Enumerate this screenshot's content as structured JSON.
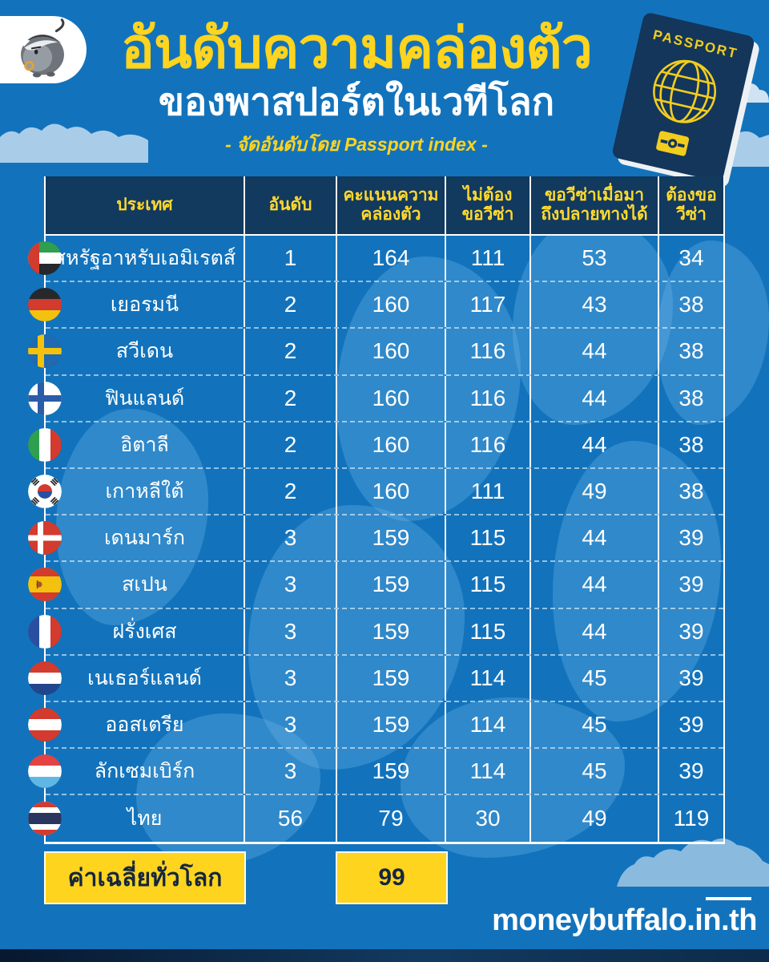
{
  "header": {
    "title": "อันดับความคล่องตัว",
    "subtitle": "ของพาสปอร์ตในเวทีโลก",
    "tagline": "- จัดอันดับโดย Passport index -"
  },
  "passport": {
    "label": "PASSPORT"
  },
  "table": {
    "columns": [
      "ประเทศ",
      "อันดับ",
      "คะแนนความ\nคล่องตัว",
      "ไม่ต้อง\nขอวีซ่า",
      "ขอวีซ่าเมื่อมา\nถึงปลายทางได้",
      "ต้องขอ\nวีซ่า"
    ],
    "rows": [
      {
        "flag": "uae",
        "country": "สหรัฐอาหรับเอมิเรตส์",
        "rank": "1",
        "score": "164",
        "visa_free": "111",
        "visa_on_arrival": "53",
        "visa_required": "34"
      },
      {
        "flag": "germany",
        "country": "เยอรมนี",
        "rank": "2",
        "score": "160",
        "visa_free": "117",
        "visa_on_arrival": "43",
        "visa_required": "38"
      },
      {
        "flag": "sweden",
        "country": "สวีเดน",
        "rank": "2",
        "score": "160",
        "visa_free": "116",
        "visa_on_arrival": "44",
        "visa_required": "38"
      },
      {
        "flag": "finland",
        "country": "ฟินแลนด์",
        "rank": "2",
        "score": "160",
        "visa_free": "116",
        "visa_on_arrival": "44",
        "visa_required": "38"
      },
      {
        "flag": "italy",
        "country": "อิตาลี",
        "rank": "2",
        "score": "160",
        "visa_free": "116",
        "visa_on_arrival": "44",
        "visa_required": "38"
      },
      {
        "flag": "south-korea",
        "country": "เกาหลีใต้",
        "rank": "2",
        "score": "160",
        "visa_free": "111",
        "visa_on_arrival": "49",
        "visa_required": "38"
      },
      {
        "flag": "denmark",
        "country": "เดนมาร์ก",
        "rank": "3",
        "score": "159",
        "visa_free": "115",
        "visa_on_arrival": "44",
        "visa_required": "39"
      },
      {
        "flag": "spain",
        "country": "สเปน",
        "rank": "3",
        "score": "159",
        "visa_free": "115",
        "visa_on_arrival": "44",
        "visa_required": "39"
      },
      {
        "flag": "france",
        "country": "ฝรั่งเศส",
        "rank": "3",
        "score": "159",
        "visa_free": "115",
        "visa_on_arrival": "44",
        "visa_required": "39"
      },
      {
        "flag": "netherlands",
        "country": "เนเธอร์แลนด์",
        "rank": "3",
        "score": "159",
        "visa_free": "114",
        "visa_on_arrival": "45",
        "visa_required": "39"
      },
      {
        "flag": "austria",
        "country": "ออสเตรีย",
        "rank": "3",
        "score": "159",
        "visa_free": "114",
        "visa_on_arrival": "45",
        "visa_required": "39"
      },
      {
        "flag": "luxembourg",
        "country": "ลักเซมเบิร์ก",
        "rank": "3",
        "score": "159",
        "visa_free": "114",
        "visa_on_arrival": "45",
        "visa_required": "39"
      },
      {
        "flag": "thailand",
        "country": "ไทย",
        "rank": "56",
        "score": "79",
        "visa_free": "30",
        "visa_on_arrival": "49",
        "visa_required": "119"
      }
    ]
  },
  "summary": {
    "average_label": "ค่าเฉลี่ยทั่วโลก",
    "average_value": "99"
  },
  "footer": {
    "website": "moneybuffalo.in.th"
  },
  "colors": {
    "background": "#1273bc",
    "panel_navy": "#12395e",
    "accent_yellow": "#ffd41e",
    "text_white": "#ffffff"
  },
  "chart_data": {
    "type": "table",
    "title": "อันดับความคล่องตัวของพาสปอร์ตในเวทีโลก",
    "subtitle": "จัดอันดับโดย Passport index",
    "columns": [
      "ประเทศ",
      "อันดับ",
      "คะแนนความคล่องตัว",
      "ไม่ต้องขอวีซ่า",
      "ขอวีซ่าเมื่อมาถึงปลายทางได้",
      "ต้องขอวีซ่า"
    ],
    "rows": [
      [
        "สหรัฐอาหรับเอมิเรตส์",
        1,
        164,
        111,
        53,
        34
      ],
      [
        "เยอรมนี",
        2,
        160,
        117,
        43,
        38
      ],
      [
        "สวีเดน",
        2,
        160,
        116,
        44,
        38
      ],
      [
        "ฟินแลนด์",
        2,
        160,
        116,
        44,
        38
      ],
      [
        "อิตาลี",
        2,
        160,
        116,
        44,
        38
      ],
      [
        "เกาหลีใต้",
        2,
        160,
        111,
        49,
        38
      ],
      [
        "เดนมาร์ก",
        3,
        159,
        115,
        44,
        39
      ],
      [
        "สเปน",
        3,
        159,
        115,
        44,
        39
      ],
      [
        "ฝรั่งเศส",
        3,
        159,
        115,
        44,
        39
      ],
      [
        "เนเธอร์แลนด์",
        3,
        159,
        114,
        45,
        39
      ],
      [
        "ออสเตรีย",
        3,
        159,
        114,
        45,
        39
      ],
      [
        "ลักเซมเบิร์ก",
        3,
        159,
        114,
        45,
        39
      ],
      [
        "ไทย",
        56,
        79,
        30,
        49,
        119
      ]
    ],
    "world_average_mobility_score": 99
  }
}
